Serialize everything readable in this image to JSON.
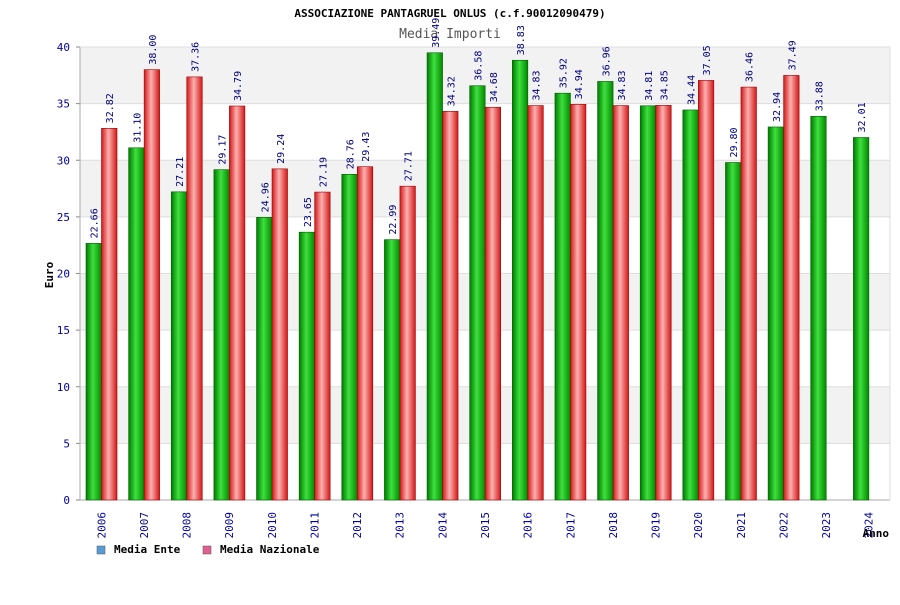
{
  "chart_data": {
    "type": "bar",
    "title": "ASSOCIAZIONE PANTAGRUEL ONLUS (c.f.90012090479)",
    "subtitle": "Media Importi",
    "xlabel": "Anno",
    "ylabel": "Euro",
    "ylim": [
      0,
      40
    ],
    "yticks": [
      "0",
      "5",
      "10",
      "15",
      "20",
      "25",
      "30",
      "35",
      "40"
    ],
    "grid": "horizontal bands",
    "legend_position": "bottom-left",
    "categories": [
      "2006",
      "2007",
      "2008",
      "2009",
      "2010",
      "2011",
      "2012",
      "2013",
      "2014",
      "2015",
      "2016",
      "2017",
      "2018",
      "2019",
      "2020",
      "2021",
      "2022",
      "2023",
      "2024"
    ],
    "series": [
      {
        "name": "Media Ente",
        "color": "#00b000",
        "legend_color": "#5b9bd5",
        "values": [
          22.66,
          31.1,
          27.21,
          29.17,
          24.96,
          23.65,
          28.76,
          22.99,
          39.49,
          36.58,
          38.83,
          35.92,
          36.96,
          34.81,
          34.44,
          29.8,
          32.94,
          33.88,
          32.01
        ],
        "labels": [
          "22.66",
          "31.10",
          "27.21",
          "29.17",
          "24.96",
          "23.65",
          "28.76",
          "22.99",
          "39.49",
          "36.58",
          "38.83",
          "35.92",
          "36.96",
          "34.81",
          "34.44",
          "29.80",
          "32.94",
          "33.88",
          "32.01"
        ]
      },
      {
        "name": "Media Nazionale",
        "color": "#e02020",
        "legend_color": "#e06090",
        "values": [
          32.82,
          38.0,
          37.36,
          34.79,
          29.24,
          27.19,
          29.43,
          27.71,
          34.32,
          34.68,
          34.83,
          34.94,
          34.83,
          34.85,
          37.05,
          36.46,
          37.49,
          null,
          null
        ],
        "labels": [
          "32.82",
          "38.00",
          "37.36",
          "34.79",
          "29.24",
          "27.19",
          "29.43",
          "27.71",
          "34.32",
          "34.68",
          "34.83",
          "34.94",
          "34.83",
          "34.85",
          "37.05",
          "36.46",
          "37.49",
          null,
          null
        ]
      }
    ]
  }
}
